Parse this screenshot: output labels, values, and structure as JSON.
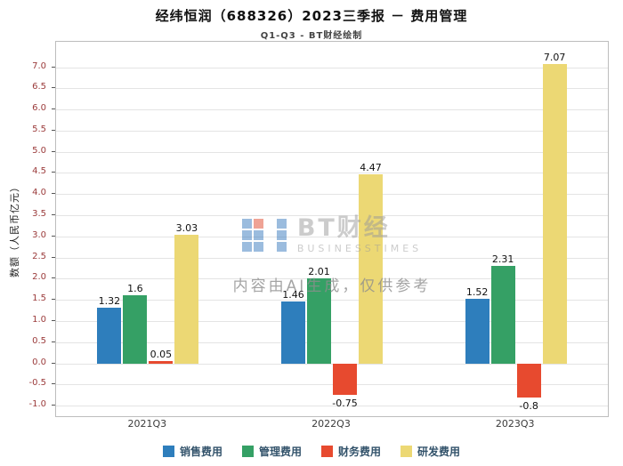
{
  "header": {
    "title": "经纬恒润（688326）2023三季报 － 费用管理",
    "subtitle": "Q1-Q3 - BT财经绘制"
  },
  "watermark": {
    "brand": "BT财经",
    "brand_sub": "BUSINESSTIMES",
    "notice": "内容由AI生成，仅供参考"
  },
  "chart_data": {
    "type": "bar",
    "title": "经纬恒润（688326）2023三季报 － 费用管理",
    "subtitle": "Q1-Q3 - BT财经绘制",
    "xlabel": "",
    "ylabel": "数额（人民币亿元）",
    "categories": [
      "2021Q3",
      "2022Q3",
      "2023Q3"
    ],
    "series": [
      {
        "name": "销售费用",
        "color": "#2e7ebc",
        "values": [
          1.32,
          1.46,
          1.52
        ]
      },
      {
        "name": "管理费用",
        "color": "#35a065",
        "values": [
          1.6,
          2.01,
          2.31
        ]
      },
      {
        "name": "财务费用",
        "color": "#e74a2f",
        "values": [
          0.05,
          -0.75,
          -0.8
        ]
      },
      {
        "name": "研发费用",
        "color": "#ecd874",
        "values": [
          3.03,
          4.47,
          7.07
        ]
      }
    ],
    "ylim": [
      -1.25,
      7.6
    ],
    "yticks": [
      -1.0,
      -0.5,
      0.0,
      0.5,
      1.0,
      1.5,
      2.0,
      2.5,
      3.0,
      3.5,
      4.0,
      4.5,
      5.0,
      5.5,
      6.0,
      6.5,
      7.0
    ],
    "grid": true,
    "legend_position": "bottom"
  }
}
